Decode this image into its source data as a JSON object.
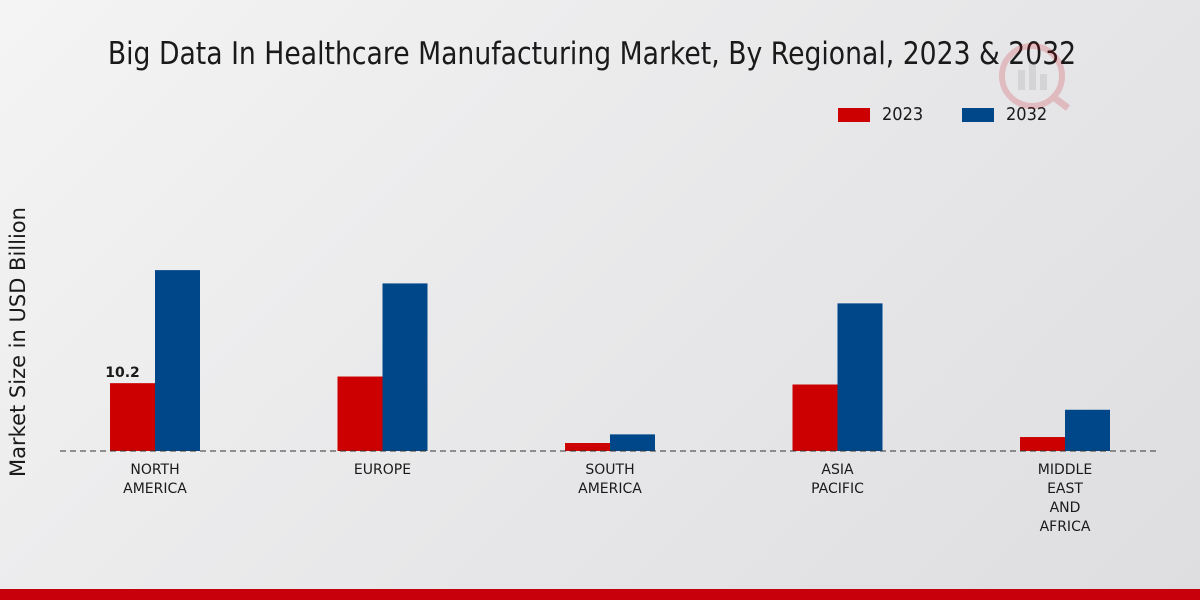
{
  "chart_data": {
    "type": "bar",
    "title": "Big Data In Healthcare Manufacturing Market, By Regional, 2023 & 2032",
    "xlabel": "",
    "ylabel": "Market Size in USD Billion",
    "ylim": [
      0,
      40
    ],
    "categories": [
      [
        "NORTH",
        "AMERICA"
      ],
      [
        "EUROPE"
      ],
      [
        "SOUTH",
        "AMERICA"
      ],
      [
        "ASIA",
        "PACIFIC"
      ],
      [
        "MIDDLE",
        "EAST",
        "AND",
        "AFRICA"
      ]
    ],
    "series": [
      {
        "name": "2023",
        "color": "#cc0000",
        "values": [
          10.2,
          11.2,
          1.2,
          10.0,
          2.1
        ]
      },
      {
        "name": "2032",
        "color": "#00478a",
        "values": [
          27.2,
          25.2,
          2.5,
          22.2,
          6.2
        ]
      }
    ],
    "data_labels": [
      {
        "series": 0,
        "index": 0,
        "text": "10.2"
      }
    ],
    "legend_position": "top-right",
    "grid": false
  }
}
